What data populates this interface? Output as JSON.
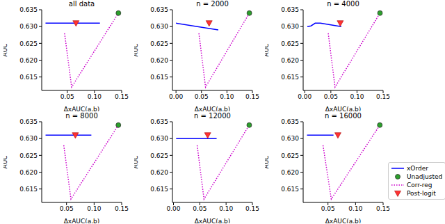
{
  "chart_data": [
    {
      "type": "line",
      "title": "all data",
      "x_label": "ΔxAUC(a,b)",
      "y_label": "AUC",
      "xlim": [
        0.003,
        0.15
      ],
      "ylim": [
        0.611,
        0.635
      ],
      "xticks": [
        0.05,
        {
          "value": 0.1,
          "label": "0.10"
        },
        0.15
      ],
      "yticks": [
        0.615,
        {
          "value": 0.62,
          "label": "0.620"
        },
        0.625,
        {
          "value": 0.63,
          "label": "0.630"
        },
        0.635
      ],
      "series": [
        {
          "name": "xOrder",
          "type": "line",
          "color": "#0000ff",
          "line_style": "solid",
          "x": [
            0.01,
            0.11
          ],
          "values": [
            0.631,
            0.631
          ]
        },
        {
          "name": "Unadjusted",
          "type": "scatter",
          "color": "#2ca02c",
          "marker": "circle",
          "x": [
            0.144
          ],
          "values": [
            0.634
          ]
        },
        {
          "name": "Corr-reg",
          "type": "line",
          "color": "#cc00cc",
          "line_style": "dotted",
          "x": [
            0.045,
            0.058,
            0.144
          ],
          "values": [
            0.628,
            0.612,
            0.634
          ]
        },
        {
          "name": "Post-logit",
          "type": "scatter",
          "color": "#ff3333",
          "marker": "triangle_down",
          "x": [
            0.066
          ],
          "values": [
            0.631
          ]
        }
      ]
    },
    {
      "type": "line",
      "title": "n = 2000",
      "x_label": "ΔxAUC(a,b)",
      "y_label": "AUC",
      "xlim": [
        -0.007,
        0.15
      ],
      "ylim": [
        0.611,
        0.635
      ],
      "xticks": [
        {
          "value": 0,
          "label": "0.00"
        },
        0.05,
        {
          "value": 0.1,
          "label": "0.10"
        },
        0.15
      ],
      "yticks": [
        0.615,
        {
          "value": 0.62,
          "label": "0.620"
        },
        0.625,
        {
          "value": 0.63,
          "label": "0.630"
        },
        0.635
      ],
      "series": [
        {
          "name": "xOrder",
          "type": "line",
          "color": "#0000ff",
          "line_style": "solid",
          "x": [
            0.0,
            0.083
          ],
          "values": [
            0.631,
            0.629
          ]
        },
        {
          "name": "Unadjusted",
          "type": "scatter",
          "color": "#2ca02c",
          "marker": "circle",
          "x": [
            0.144
          ],
          "values": [
            0.634
          ]
        },
        {
          "name": "Corr-reg",
          "type": "line",
          "color": "#cc00cc",
          "line_style": "dotted",
          "x": [
            0.045,
            0.058,
            0.144
          ],
          "values": [
            0.628,
            0.612,
            0.634
          ]
        },
        {
          "name": "Post-logit",
          "type": "scatter",
          "color": "#ff3333",
          "marker": "triangle_down",
          "x": [
            0.065
          ],
          "values": [
            0.631
          ]
        }
      ]
    },
    {
      "type": "line",
      "title": "n = 4000",
      "x_label": "ΔxAUC(a,b)",
      "y_label": "AUC",
      "xlim": [
        -0.003,
        0.15
      ],
      "ylim": [
        0.611,
        0.635
      ],
      "xticks": [
        {
          "value": 0,
          "label": "0.00"
        },
        0.05,
        {
          "value": 0.1,
          "label": "0.10"
        },
        0.15
      ],
      "yticks": [
        0.615,
        {
          "value": 0.62,
          "label": "0.620"
        },
        0.625,
        {
          "value": 0.63,
          "label": "0.630"
        },
        0.635
      ],
      "series": [
        {
          "name": "xOrder",
          "type": "line",
          "color": "#0000ff",
          "line_style": "solid",
          "x": [
            0.005,
            0.012,
            0.02,
            0.03,
            0.05,
            0.07
          ],
          "values": [
            0.63,
            0.6302,
            0.631,
            0.631,
            0.6305,
            0.63
          ]
        },
        {
          "name": "Unadjusted",
          "type": "scatter",
          "color": "#2ca02c",
          "marker": "circle",
          "x": [
            0.144
          ],
          "values": [
            0.634
          ]
        },
        {
          "name": "Corr-reg",
          "type": "line",
          "color": "#cc00cc",
          "line_style": "dotted",
          "x": [
            0.045,
            0.058,
            0.144
          ],
          "values": [
            0.628,
            0.612,
            0.634
          ]
        },
        {
          "name": "Post-logit",
          "type": "scatter",
          "color": "#ff3333",
          "marker": "triangle_down",
          "x": [
            0.068
          ],
          "values": [
            0.631
          ]
        }
      ]
    },
    {
      "type": "line",
      "title": "n = 8000",
      "x_label": "ΔxAUC(a,b)",
      "y_label": "AUC",
      "xlim": [
        0.005,
        0.15
      ],
      "ylim": [
        0.611,
        0.635
      ],
      "xticks": [
        0.05,
        {
          "value": 0.1,
          "label": "0.10"
        },
        0.15
      ],
      "yticks": [
        0.615,
        {
          "value": 0.62,
          "label": "0.620"
        },
        0.625,
        {
          "value": 0.63,
          "label": "0.630"
        },
        0.635
      ],
      "series": [
        {
          "name": "xOrder",
          "type": "line",
          "color": "#0000ff",
          "line_style": "solid",
          "x": [
            0.012,
            0.095
          ],
          "values": [
            0.631,
            0.631
          ]
        },
        {
          "name": "Unadjusted",
          "type": "scatter",
          "color": "#2ca02c",
          "marker": "circle",
          "x": [
            0.144
          ],
          "values": [
            0.634
          ]
        },
        {
          "name": "Corr-reg",
          "type": "line",
          "color": "#cc00cc",
          "line_style": "dotted",
          "x": [
            0.045,
            0.058,
            0.144
          ],
          "values": [
            0.628,
            0.612,
            0.634
          ]
        },
        {
          "name": "Post-logit",
          "type": "scatter",
          "color": "#ff3333",
          "marker": "triangle_down",
          "x": [
            0.066
          ],
          "values": [
            0.631
          ]
        }
      ]
    },
    {
      "type": "line",
      "title": "n = 12000",
      "x_label": "ΔxAUC(a,b)",
      "y_label": "AUC",
      "xlim": [
        -0.002,
        0.15
      ],
      "ylim": [
        0.611,
        0.635
      ],
      "xticks": [
        {
          "value": 0,
          "label": "0.00"
        },
        0.05,
        {
          "value": 0.1,
          "label": "0.10"
        },
        0.15
      ],
      "yticks": [
        0.615,
        {
          "value": 0.62,
          "label": "0.620"
        },
        0.625,
        {
          "value": 0.63,
          "label": "0.630"
        },
        0.635
      ],
      "series": [
        {
          "name": "xOrder",
          "type": "line",
          "color": "#0000ff",
          "line_style": "solid",
          "x": [
            0.005,
            0.082
          ],
          "values": [
            0.63,
            0.63
          ]
        },
        {
          "name": "Unadjusted",
          "type": "scatter",
          "color": "#2ca02c",
          "marker": "circle",
          "x": [
            0.144
          ],
          "values": [
            0.634
          ]
        },
        {
          "name": "Corr-reg",
          "type": "line",
          "color": "#cc00cc",
          "line_style": "dotted",
          "x": [
            0.045,
            0.058,
            0.144
          ],
          "values": [
            0.628,
            0.612,
            0.634
          ]
        },
        {
          "name": "Post-logit",
          "type": "scatter",
          "color": "#ff3333",
          "marker": "triangle_down",
          "x": [
            0.065
          ],
          "values": [
            0.631
          ]
        }
      ]
    },
    {
      "type": "line",
      "title": "n = 16000",
      "x_label": "ΔxAUC(a,b)",
      "y_label": "AUC",
      "legend": "lower right",
      "xlim": [
        0.005,
        0.15
      ],
      "ylim": [
        0.611,
        0.635
      ],
      "xticks": [
        0.05,
        {
          "value": 0.1,
          "label": "0.10"
        },
        0.15
      ],
      "yticks": [
        0.615,
        {
          "value": 0.62,
          "label": "0.620"
        },
        0.625,
        {
          "value": 0.63,
          "label": "0.630"
        },
        0.635
      ],
      "series": [
        {
          "name": "xOrder",
          "type": "line",
          "color": "#0000ff",
          "line_style": "solid",
          "x": [
            0.012,
            0.06
          ],
          "values": [
            0.631,
            0.631
          ]
        },
        {
          "name": "Unadjusted",
          "type": "scatter",
          "color": "#2ca02c",
          "marker": "circle",
          "x": [
            0.144
          ],
          "values": [
            0.634
          ]
        },
        {
          "name": "Corr-reg",
          "type": "line",
          "color": "#cc00cc",
          "line_style": "dotted",
          "x": [
            0.041,
            0.056,
            0.144
          ],
          "values": [
            0.628,
            0.612,
            0.634
          ]
        },
        {
          "name": "Post-logit",
          "type": "scatter",
          "color": "#ff3333",
          "marker": "triangle_down",
          "x": [
            0.068
          ],
          "values": [
            0.631
          ]
        }
      ]
    }
  ]
}
